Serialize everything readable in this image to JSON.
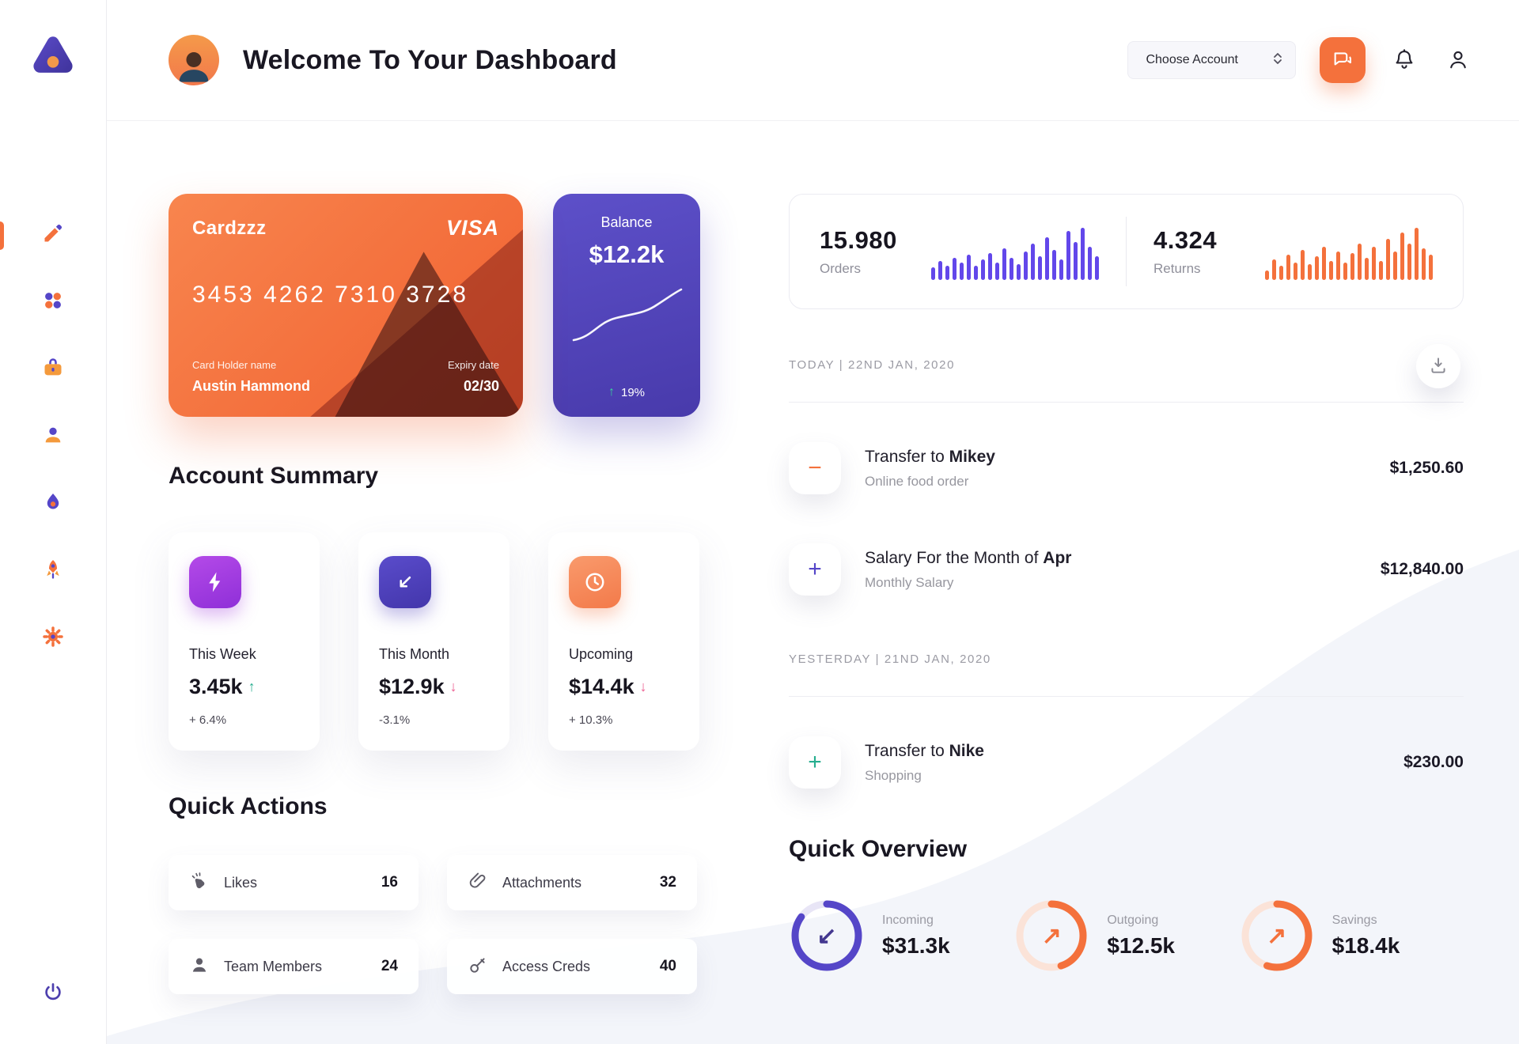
{
  "colors": {
    "orange": "#F4713C",
    "indigo": "#5546C8",
    "purple": "#A13BE0",
    "green": "#27AE8F",
    "red": "#EC5B8E"
  },
  "sidebar": {
    "items": [
      {
        "name": "edit",
        "active": true
      },
      {
        "name": "dashboard",
        "active": false
      },
      {
        "name": "work",
        "active": false
      },
      {
        "name": "users",
        "active": false
      },
      {
        "name": "activity",
        "active": false
      },
      {
        "name": "launch",
        "active": false
      },
      {
        "name": "settings",
        "active": false
      }
    ]
  },
  "header": {
    "title": "Welcome To Your Dashboard",
    "choose_account": "Choose Account"
  },
  "credit_card": {
    "name": "Cardzzz",
    "brand": "VISA",
    "number": "3453 4262 7310 3728",
    "holder_label": "Card Holder name",
    "holder_name": "Austin Hammond",
    "expiry_label": "Expiry date",
    "expiry": "02/30"
  },
  "balance_card": {
    "label": "Balance",
    "value": "$12.2k",
    "arrow": "↑",
    "change": "19%"
  },
  "stats_card": {
    "orders": {
      "value": "15.980",
      "label": "Orders",
      "bar_color": "#6247EA",
      "bars": [
        16,
        24,
        18,
        28,
        22,
        32,
        18,
        26,
        34,
        22,
        40,
        28,
        20,
        36,
        46,
        30,
        54,
        38,
        26,
        62,
        48,
        66,
        42,
        30
      ]
    },
    "returns": {
      "value": "4.324",
      "label": "Returns",
      "bar_color": "#F4713C",
      "bars": [
        12,
        26,
        18,
        32,
        22,
        38,
        20,
        30,
        42,
        24,
        36,
        22,
        34,
        46,
        28,
        42,
        24,
        52,
        36,
        60,
        46,
        66,
        40,
        32
      ]
    }
  },
  "account_summary": {
    "title": "Account Summary",
    "cards": [
      {
        "label": "This Week",
        "value": "3.45k",
        "arrow": "↑",
        "change": "+ 6.4%",
        "icon_bg": "#A13BE0"
      },
      {
        "label": "This Month",
        "value": "$12.9k",
        "arrow": "↓",
        "change": "-3.1%",
        "icon_bg": "#4C3FB8"
      },
      {
        "label": "Upcoming",
        "value": "$14.4k",
        "arrow": "↓",
        "change": "+ 10.3%",
        "icon_bg": "#F58B61"
      }
    ]
  },
  "quick_actions": {
    "title": "Quick Actions",
    "items": [
      {
        "label": "Likes",
        "count": "16"
      },
      {
        "label": "Attachments",
        "count": "32"
      },
      {
        "label": "Team Members",
        "count": "24"
      },
      {
        "label": "Access Creds",
        "count": "40"
      }
    ]
  },
  "transactions": {
    "groups": [
      {
        "date_label": "TODAY | 22ND JAN, 2020",
        "items": [
          {
            "title_prefix": "Transfer to ",
            "title_bold": "Mikey",
            "subtitle": "Online food order",
            "amount": "$1,250.60",
            "sign": "−",
            "sign_color": "#F4713C"
          },
          {
            "title_prefix": "Salary For the Month of ",
            "title_bold": "Apr",
            "subtitle": "Monthly Salary",
            "amount": "$12,840.00",
            "sign": "+",
            "sign_color": "#5546C8"
          }
        ]
      },
      {
        "date_label": "YESTERDAY | 21ND JAN, 2020",
        "items": [
          {
            "title_prefix": "Transfer to ",
            "title_bold": "Nike",
            "subtitle": "Shopping",
            "amount": "$230.00",
            "sign": "+",
            "sign_color": "#27AE8F"
          }
        ]
      }
    ]
  },
  "quick_overview": {
    "title": "Quick Overview",
    "items": [
      {
        "label": "Incoming",
        "value": "$31.3k",
        "arrow": "↙",
        "arrow_color": "#43378f",
        "ring_color": "#5546C8",
        "track_color": "#e8e5f6",
        "percent": 85
      },
      {
        "label": "Outgoing",
        "value": "$12.5k",
        "arrow": "↗",
        "arrow_color": "#F4713C",
        "ring_color": "#F4713C",
        "track_color": "#fbe3d8",
        "percent": 45
      },
      {
        "label": "Savings",
        "value": "$18.4k",
        "arrow": "↗",
        "arrow_color": "#F4713C",
        "ring_color": "#F4713C",
        "track_color": "#fbe3d8",
        "percent": 55
      }
    ]
  }
}
